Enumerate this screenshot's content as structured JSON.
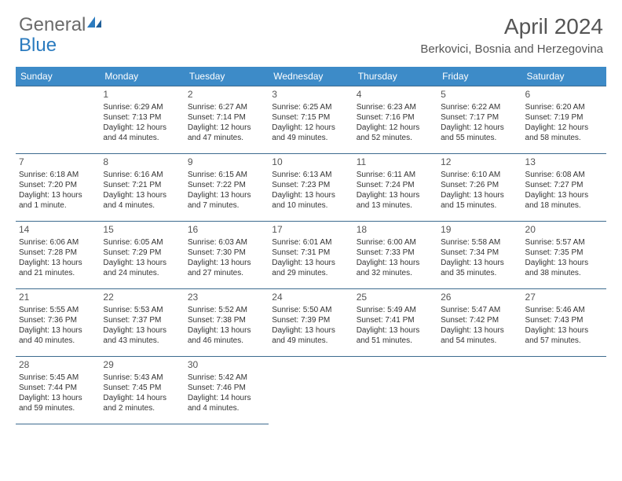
{
  "logo": {
    "text1": "General",
    "text2": "Blue"
  },
  "title": "April 2024",
  "location": "Berkovici, Bosnia and Herzegovina",
  "colors": {
    "header_bg": "#3d8bc8",
    "header_text": "#ffffff",
    "border": "#3d6b8f",
    "daynum": "#555555",
    "body_text": "#333333",
    "logo_gray": "#6b6b6b",
    "logo_blue": "#2b7bbf"
  },
  "dow": [
    "Sunday",
    "Monday",
    "Tuesday",
    "Wednesday",
    "Thursday",
    "Friday",
    "Saturday"
  ],
  "weeks": [
    [
      null,
      {
        "n": "1",
        "sr": "6:29 AM",
        "ss": "7:13 PM",
        "dl": "12 hours and 44 minutes."
      },
      {
        "n": "2",
        "sr": "6:27 AM",
        "ss": "7:14 PM",
        "dl": "12 hours and 47 minutes."
      },
      {
        "n": "3",
        "sr": "6:25 AM",
        "ss": "7:15 PM",
        "dl": "12 hours and 49 minutes."
      },
      {
        "n": "4",
        "sr": "6:23 AM",
        "ss": "7:16 PM",
        "dl": "12 hours and 52 minutes."
      },
      {
        "n": "5",
        "sr": "6:22 AM",
        "ss": "7:17 PM",
        "dl": "12 hours and 55 minutes."
      },
      {
        "n": "6",
        "sr": "6:20 AM",
        "ss": "7:19 PM",
        "dl": "12 hours and 58 minutes."
      }
    ],
    [
      {
        "n": "7",
        "sr": "6:18 AM",
        "ss": "7:20 PM",
        "dl": "13 hours and 1 minute."
      },
      {
        "n": "8",
        "sr": "6:16 AM",
        "ss": "7:21 PM",
        "dl": "13 hours and 4 minutes."
      },
      {
        "n": "9",
        "sr": "6:15 AM",
        "ss": "7:22 PM",
        "dl": "13 hours and 7 minutes."
      },
      {
        "n": "10",
        "sr": "6:13 AM",
        "ss": "7:23 PM",
        "dl": "13 hours and 10 minutes."
      },
      {
        "n": "11",
        "sr": "6:11 AM",
        "ss": "7:24 PM",
        "dl": "13 hours and 13 minutes."
      },
      {
        "n": "12",
        "sr": "6:10 AM",
        "ss": "7:26 PM",
        "dl": "13 hours and 15 minutes."
      },
      {
        "n": "13",
        "sr": "6:08 AM",
        "ss": "7:27 PM",
        "dl": "13 hours and 18 minutes."
      }
    ],
    [
      {
        "n": "14",
        "sr": "6:06 AM",
        "ss": "7:28 PM",
        "dl": "13 hours and 21 minutes."
      },
      {
        "n": "15",
        "sr": "6:05 AM",
        "ss": "7:29 PM",
        "dl": "13 hours and 24 minutes."
      },
      {
        "n": "16",
        "sr": "6:03 AM",
        "ss": "7:30 PM",
        "dl": "13 hours and 27 minutes."
      },
      {
        "n": "17",
        "sr": "6:01 AM",
        "ss": "7:31 PM",
        "dl": "13 hours and 29 minutes."
      },
      {
        "n": "18",
        "sr": "6:00 AM",
        "ss": "7:33 PM",
        "dl": "13 hours and 32 minutes."
      },
      {
        "n": "19",
        "sr": "5:58 AM",
        "ss": "7:34 PM",
        "dl": "13 hours and 35 minutes."
      },
      {
        "n": "20",
        "sr": "5:57 AM",
        "ss": "7:35 PM",
        "dl": "13 hours and 38 minutes."
      }
    ],
    [
      {
        "n": "21",
        "sr": "5:55 AM",
        "ss": "7:36 PM",
        "dl": "13 hours and 40 minutes."
      },
      {
        "n": "22",
        "sr": "5:53 AM",
        "ss": "7:37 PM",
        "dl": "13 hours and 43 minutes."
      },
      {
        "n": "23",
        "sr": "5:52 AM",
        "ss": "7:38 PM",
        "dl": "13 hours and 46 minutes."
      },
      {
        "n": "24",
        "sr": "5:50 AM",
        "ss": "7:39 PM",
        "dl": "13 hours and 49 minutes."
      },
      {
        "n": "25",
        "sr": "5:49 AM",
        "ss": "7:41 PM",
        "dl": "13 hours and 51 minutes."
      },
      {
        "n": "26",
        "sr": "5:47 AM",
        "ss": "7:42 PM",
        "dl": "13 hours and 54 minutes."
      },
      {
        "n": "27",
        "sr": "5:46 AM",
        "ss": "7:43 PM",
        "dl": "13 hours and 57 minutes."
      }
    ],
    [
      {
        "n": "28",
        "sr": "5:45 AM",
        "ss": "7:44 PM",
        "dl": "13 hours and 59 minutes."
      },
      {
        "n": "29",
        "sr": "5:43 AM",
        "ss": "7:45 PM",
        "dl": "14 hours and 2 minutes."
      },
      {
        "n": "30",
        "sr": "5:42 AM",
        "ss": "7:46 PM",
        "dl": "14 hours and 4 minutes."
      },
      null,
      null,
      null,
      null
    ]
  ],
  "labels": {
    "sunrise": "Sunrise:",
    "sunset": "Sunset:",
    "daylight": "Daylight:"
  }
}
